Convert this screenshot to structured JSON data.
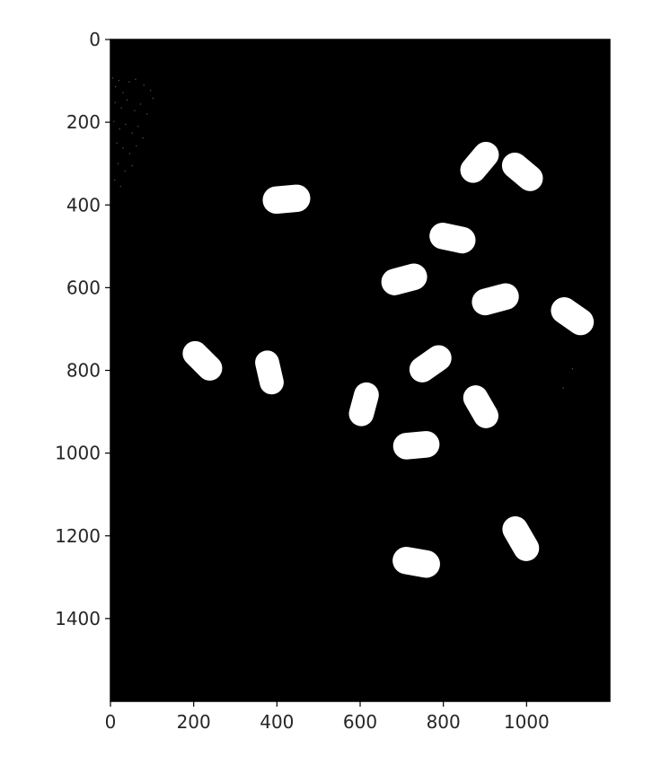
{
  "chart_data": {
    "type": "image",
    "title": "",
    "xlabel": "",
    "ylabel": "",
    "image_width": 1200,
    "image_height": 1600,
    "xlim": [
      0,
      1200
    ],
    "ylim": [
      1600,
      0
    ],
    "background_color": "#000000",
    "blob_color": "#ffffff",
    "x_ticks": [
      0,
      200,
      400,
      600,
      800,
      1000
    ],
    "y_ticks": [
      0,
      200,
      400,
      600,
      800,
      1000,
      1200,
      1400
    ],
    "x_tick_labels": [
      "0",
      "200",
      "400",
      "600",
      "800",
      "1000"
    ],
    "y_tick_labels": [
      "0",
      "200",
      "400",
      "600",
      "800",
      "1000",
      "1200",
      "1400"
    ],
    "objects": [
      {
        "cx": 423,
        "cy": 386,
        "length": 115,
        "width": 66,
        "angle": -5
      },
      {
        "cx": 887,
        "cy": 297,
        "length": 110,
        "width": 62,
        "angle": -50
      },
      {
        "cx": 990,
        "cy": 320,
        "length": 110,
        "width": 62,
        "angle": 40
      },
      {
        "cx": 822,
        "cy": 480,
        "length": 112,
        "width": 64,
        "angle": 12
      },
      {
        "cx": 706,
        "cy": 580,
        "length": 112,
        "width": 64,
        "angle": -15
      },
      {
        "cx": 925,
        "cy": 628,
        "length": 115,
        "width": 64,
        "angle": -15
      },
      {
        "cx": 1110,
        "cy": 669,
        "length": 112,
        "width": 64,
        "angle": 35
      },
      {
        "cx": 221,
        "cy": 777,
        "length": 110,
        "width": 60,
        "angle": 45
      },
      {
        "cx": 382,
        "cy": 805,
        "length": 107,
        "width": 58,
        "angle": 77
      },
      {
        "cx": 769,
        "cy": 784,
        "length": 110,
        "width": 62,
        "angle": -35
      },
      {
        "cx": 609,
        "cy": 882,
        "length": 107,
        "width": 60,
        "angle": 105
      },
      {
        "cx": 890,
        "cy": 888,
        "length": 110,
        "width": 60,
        "angle": 60
      },
      {
        "cx": 735,
        "cy": 981,
        "length": 112,
        "width": 64,
        "angle": -5
      },
      {
        "cx": 986,
        "cy": 1207,
        "length": 115,
        "width": 62,
        "angle": 60
      },
      {
        "cx": 735,
        "cy": 1264,
        "length": 115,
        "width": 66,
        "angle": 10
      }
    ],
    "noise_points": [
      {
        "x": 5,
        "y": 93
      },
      {
        "x": 12,
        "y": 114
      },
      {
        "x": 20,
        "y": 99
      },
      {
        "x": 30,
        "y": 128
      },
      {
        "x": 45,
        "y": 102
      },
      {
        "x": 60,
        "y": 96
      },
      {
        "x": 80,
        "y": 110
      },
      {
        "x": 96,
        "y": 123
      },
      {
        "x": 11,
        "y": 152
      },
      {
        "x": 26,
        "y": 165
      },
      {
        "x": 40,
        "y": 146
      },
      {
        "x": 58,
        "y": 172
      },
      {
        "x": 72,
        "y": 156
      },
      {
        "x": 88,
        "y": 180
      },
      {
        "x": 102,
        "y": 142
      },
      {
        "x": 8,
        "y": 198
      },
      {
        "x": 22,
        "y": 216
      },
      {
        "x": 36,
        "y": 205
      },
      {
        "x": 52,
        "y": 226
      },
      {
        "x": 66,
        "y": 210
      },
      {
        "x": 78,
        "y": 238
      },
      {
        "x": 15,
        "y": 250
      },
      {
        "x": 30,
        "y": 262
      },
      {
        "x": 46,
        "y": 276
      },
      {
        "x": 62,
        "y": 257
      },
      {
        "x": 18,
        "y": 300
      },
      {
        "x": 35,
        "y": 318
      },
      {
        "x": 52,
        "y": 305
      },
      {
        "x": 10,
        "y": 340
      },
      {
        "x": 24,
        "y": 355
      },
      {
        "x": 1110,
        "y": 796
      },
      {
        "x": 1088,
        "y": 842
      }
    ]
  }
}
